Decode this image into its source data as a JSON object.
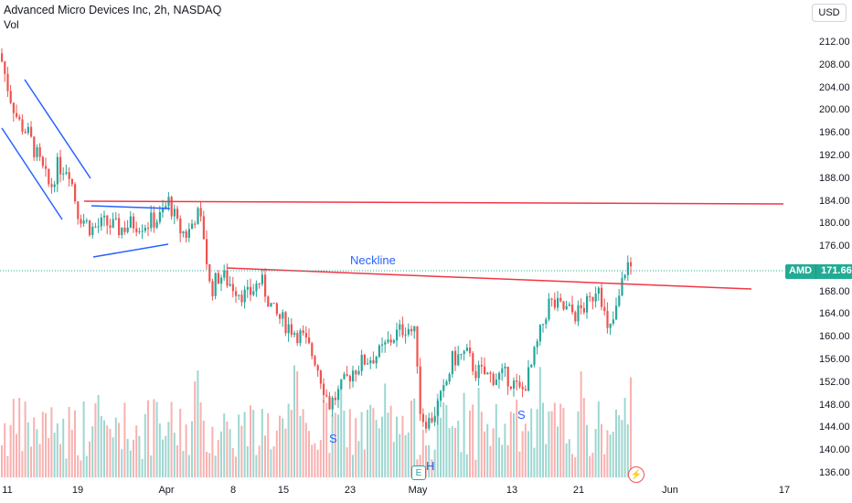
{
  "header": {
    "title": "Advanced Micro Devices Inc, 2h, NASDAQ",
    "volume_label": "Vol",
    "currency_button": "USD"
  },
  "price_badge": {
    "symbol": "AMD",
    "price": "171.66"
  },
  "annotations": {
    "neckline": "Neckline",
    "left_shoulder": "S",
    "head": "H",
    "right_shoulder": "S"
  },
  "markers": {
    "earnings": "E",
    "flash": "⚡"
  },
  "colors": {
    "up": "#26a69a",
    "down": "#ef5350",
    "trendline_red": "#f23645",
    "pattern_blue": "#2962ff"
  },
  "chart_data": {
    "type": "candlestick",
    "title": "Advanced Micro Devices Inc, 2h, NASDAQ",
    "ylim": [
      134,
      214
    ],
    "y_ticks": [
      "212.00",
      "208.00",
      "204.00",
      "200.00",
      "196.00",
      "192.00",
      "188.00",
      "184.00",
      "180.00",
      "176.00",
      "172.00",
      "168.00",
      "164.00",
      "160.00",
      "156.00",
      "152.00",
      "148.00",
      "144.00",
      "140.00",
      "136.00"
    ],
    "x_ticks": [
      "11",
      "19",
      "Apr",
      "8",
      "15",
      "23",
      "May",
      "13",
      "21",
      "Jun",
      "17"
    ],
    "last_price": 171.66,
    "close_path": [
      [
        0,
        210
      ],
      [
        10,
        203
      ],
      [
        20,
        198
      ],
      [
        30,
        196
      ],
      [
        40,
        192
      ],
      [
        50,
        188
      ],
      [
        55,
        186
      ],
      [
        62,
        190
      ],
      [
        75,
        190
      ],
      [
        85,
        182
      ],
      [
        100,
        179
      ],
      [
        115,
        180
      ],
      [
        130,
        179
      ],
      [
        145,
        180
      ],
      [
        160,
        180
      ],
      [
        175,
        181
      ],
      [
        185,
        184
      ],
      [
        195,
        179
      ],
      [
        205,
        178
      ],
      [
        215,
        182
      ],
      [
        222,
        179
      ],
      [
        230,
        168
      ],
      [
        240,
        171
      ],
      [
        255,
        169
      ],
      [
        270,
        167
      ],
      [
        285,
        170
      ],
      [
        300,
        164
      ],
      [
        315,
        162
      ],
      [
        330,
        160
      ],
      [
        345,
        156
      ],
      [
        360,
        148
      ],
      [
        370,
        150
      ],
      [
        385,
        154
      ],
      [
        400,
        156
      ],
      [
        415,
        157
      ],
      [
        430,
        160
      ],
      [
        445,
        162
      ],
      [
        455,
        160
      ],
      [
        460,
        146
      ],
      [
        470,
        145
      ],
      [
        485,
        150
      ],
      [
        495,
        156
      ],
      [
        510,
        157
      ],
      [
        520,
        154
      ],
      [
        535,
        153
      ],
      [
        555,
        153
      ],
      [
        570,
        150
      ],
      [
        580,
        154
      ],
      [
        590,
        160
      ],
      [
        600,
        166
      ],
      [
        615,
        165
      ],
      [
        630,
        164
      ],
      [
        645,
        166
      ],
      [
        655,
        170
      ],
      [
        665,
        160
      ],
      [
        675,
        165
      ],
      [
        685,
        173
      ],
      [
        692,
        172
      ]
    ],
    "volume_note": "relative bar heights along bottom",
    "trendlines": [
      {
        "name": "resistance",
        "from": [
          "19",
          184
        ],
        "to": [
          "17",
          183.5
        ]
      },
      {
        "name": "neckline",
        "from": [
          "8",
          172
        ],
        "to": [
          "Jun",
          168.5
        ]
      }
    ]
  }
}
